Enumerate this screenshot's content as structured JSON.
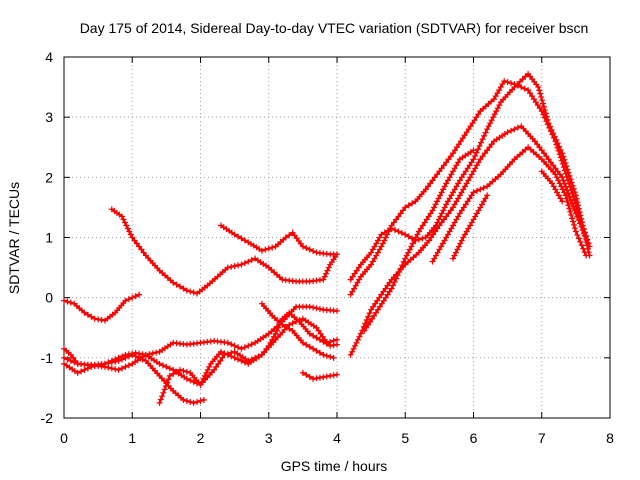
{
  "chart_data": {
    "type": "scatter",
    "title": "Day 175 of 2014, Sidereal Day-to-day VTEC variation (SDTVAR) for receiver bscn",
    "xlabel": "GPS time / hours",
    "ylabel": "SDTVAR / TECUs",
    "xlim": [
      0,
      8
    ],
    "ylim": [
      -2,
      4
    ],
    "xticks": [
      "0",
      "1",
      "2",
      "3",
      "4",
      "5",
      "6",
      "7",
      "8"
    ],
    "yticks": [
      "-2",
      "-1",
      "0",
      "1",
      "2",
      "3",
      "4"
    ],
    "grid": true,
    "legend": "none",
    "marker": "+",
    "color": "#ff0000",
    "series": [
      {
        "points": [
          [
            0.0,
            -0.05
          ],
          [
            0.15,
            -0.1
          ],
          [
            0.3,
            -0.25
          ],
          [
            0.45,
            -0.35
          ],
          [
            0.6,
            -0.38
          ],
          [
            0.75,
            -0.25
          ],
          [
            0.9,
            -0.05
          ],
          [
            1.0,
            0.0
          ],
          [
            1.1,
            0.05
          ]
        ]
      },
      {
        "points": [
          [
            0.0,
            -0.85
          ],
          [
            0.1,
            -0.95
          ],
          [
            0.2,
            -1.1
          ],
          [
            0.4,
            -1.12
          ],
          [
            0.6,
            -1.1
          ],
          [
            0.7,
            -1.05
          ],
          [
            0.8,
            -1.0
          ],
          [
            0.9,
            -0.95
          ],
          [
            1.05,
            -0.92
          ],
          [
            1.2,
            -0.95
          ],
          [
            1.4,
            -1.1
          ],
          [
            1.6,
            -1.2
          ],
          [
            1.8,
            -1.35
          ],
          [
            2.0,
            -1.45
          ],
          [
            2.2,
            -1.2
          ],
          [
            2.35,
            -0.95
          ],
          [
            2.5,
            -0.9
          ],
          [
            2.7,
            -1.05
          ],
          [
            2.9,
            -0.95
          ],
          [
            3.1,
            -0.7
          ],
          [
            3.3,
            -0.45
          ],
          [
            3.5,
            -0.35
          ],
          [
            3.7,
            -0.5
          ],
          [
            3.85,
            -0.75
          ],
          [
            4.0,
            -0.7
          ]
        ]
      },
      {
        "points": [
          [
            0.0,
            -1.1
          ],
          [
            0.2,
            -1.25
          ],
          [
            0.4,
            -1.15
          ],
          [
            0.6,
            -1.1
          ],
          [
            0.8,
            -1.05
          ],
          [
            1.0,
            -0.95
          ],
          [
            1.2,
            -1.05
          ],
          [
            1.4,
            -1.3
          ],
          [
            1.6,
            -1.55
          ],
          [
            1.75,
            -1.7
          ],
          [
            1.9,
            -1.75
          ],
          [
            2.05,
            -1.7
          ]
        ]
      },
      {
        "points": [
          [
            1.4,
            -1.75
          ],
          [
            1.55,
            -1.3
          ],
          [
            1.7,
            -1.2
          ],
          [
            1.85,
            -1.25
          ],
          [
            2.0,
            -1.45
          ],
          [
            2.15,
            -1.1
          ],
          [
            2.3,
            -0.9
          ],
          [
            2.5,
            -1.0
          ],
          [
            2.7,
            -1.1
          ],
          [
            2.9,
            -0.95
          ],
          [
            3.0,
            -0.8
          ],
          [
            3.1,
            -0.6
          ],
          [
            3.2,
            -0.35
          ],
          [
            3.3,
            -0.25
          ],
          [
            3.45,
            -0.4
          ],
          [
            3.6,
            -0.6
          ],
          [
            3.75,
            -0.7
          ],
          [
            3.9,
            -0.8
          ],
          [
            4.0,
            -0.78
          ]
        ]
      },
      {
        "points": [
          [
            0.0,
            -1.0
          ],
          [
            0.2,
            -1.1
          ],
          [
            0.4,
            -1.12
          ],
          [
            0.6,
            -1.15
          ],
          [
            0.8,
            -1.2
          ],
          [
            1.0,
            -1.1
          ],
          [
            1.2,
            -0.95
          ],
          [
            1.4,
            -0.9
          ],
          [
            1.6,
            -0.75
          ],
          [
            1.8,
            -0.78
          ],
          [
            2.0,
            -0.75
          ],
          [
            2.2,
            -0.72
          ],
          [
            2.4,
            -0.75
          ],
          [
            2.6,
            -0.85
          ],
          [
            2.8,
            -0.75
          ],
          [
            3.0,
            -0.6
          ],
          [
            3.2,
            -0.4
          ],
          [
            3.4,
            -0.15
          ],
          [
            3.6,
            -0.15
          ],
          [
            3.8,
            -0.2
          ],
          [
            4.0,
            -0.22
          ]
        ]
      },
      {
        "points": [
          [
            0.7,
            1.47
          ],
          [
            0.85,
            1.35
          ],
          [
            1.0,
            1.0
          ],
          [
            1.2,
            0.7
          ],
          [
            1.4,
            0.45
          ],
          [
            1.6,
            0.25
          ],
          [
            1.8,
            0.12
          ],
          [
            1.95,
            0.07
          ],
          [
            2.1,
            0.2
          ],
          [
            2.25,
            0.35
          ],
          [
            2.4,
            0.5
          ],
          [
            2.6,
            0.55
          ],
          [
            2.8,
            0.65
          ],
          [
            3.0,
            0.5
          ],
          [
            3.2,
            0.3
          ],
          [
            3.4,
            0.27
          ],
          [
            3.6,
            0.27
          ],
          [
            3.8,
            0.3
          ],
          [
            3.9,
            0.55
          ],
          [
            4.0,
            0.72
          ]
        ]
      },
      {
        "points": [
          [
            2.3,
            1.2
          ],
          [
            2.5,
            1.05
          ],
          [
            2.7,
            0.92
          ],
          [
            2.9,
            0.78
          ],
          [
            3.1,
            0.85
          ],
          [
            3.25,
            1.0
          ],
          [
            3.35,
            1.08
          ],
          [
            3.5,
            0.85
          ],
          [
            3.7,
            0.75
          ],
          [
            3.9,
            0.72
          ],
          [
            4.0,
            0.72
          ]
        ]
      },
      {
        "points": [
          [
            2.9,
            -0.1
          ],
          [
            3.05,
            -0.3
          ],
          [
            3.2,
            -0.45
          ],
          [
            3.35,
            -0.55
          ],
          [
            3.5,
            -0.75
          ],
          [
            3.65,
            -0.85
          ],
          [
            3.8,
            -0.95
          ],
          [
            3.95,
            -1.0
          ]
        ]
      },
      {
        "points": [
          [
            3.5,
            -1.25
          ],
          [
            3.65,
            -1.35
          ],
          [
            3.8,
            -1.32
          ],
          [
            4.0,
            -1.28
          ]
        ]
      },
      {
        "points": [
          [
            4.2,
            -0.95
          ],
          [
            4.35,
            -0.6
          ],
          [
            4.5,
            -0.2
          ],
          [
            4.65,
            0.05
          ],
          [
            4.8,
            0.3
          ],
          [
            5.0,
            0.55
          ],
          [
            5.2,
            0.75
          ],
          [
            5.35,
            0.95
          ],
          [
            5.5,
            1.2
          ],
          [
            5.7,
            1.5
          ],
          [
            5.9,
            1.9
          ],
          [
            6.1,
            2.3
          ],
          [
            6.3,
            2.6
          ],
          [
            6.5,
            2.75
          ],
          [
            6.7,
            2.85
          ],
          [
            6.9,
            2.6
          ],
          [
            7.1,
            2.3
          ],
          [
            7.3,
            2.0
          ],
          [
            7.5,
            1.4
          ],
          [
            7.68,
            0.9
          ]
        ]
      },
      {
        "points": [
          [
            4.2,
            0.3
          ],
          [
            4.35,
            0.55
          ],
          [
            4.5,
            0.75
          ],
          [
            4.65,
            1.05
          ],
          [
            4.8,
            1.15
          ],
          [
            5.0,
            1.05
          ],
          [
            5.15,
            0.95
          ],
          [
            5.3,
            1.0
          ],
          [
            5.45,
            1.2
          ],
          [
            5.6,
            1.55
          ],
          [
            5.8,
            1.95
          ],
          [
            6.0,
            2.3
          ],
          [
            6.2,
            2.8
          ],
          [
            6.4,
            3.25
          ],
          [
            6.6,
            3.5
          ],
          [
            6.8,
            3.72
          ],
          [
            6.95,
            3.5
          ],
          [
            7.1,
            2.9
          ],
          [
            7.3,
            2.4
          ],
          [
            7.5,
            1.7
          ],
          [
            7.7,
            0.7
          ]
        ]
      },
      {
        "points": [
          [
            4.2,
            0.05
          ],
          [
            4.35,
            0.35
          ],
          [
            4.5,
            0.55
          ],
          [
            4.65,
            0.85
          ],
          [
            4.8,
            1.2
          ],
          [
            5.0,
            1.5
          ],
          [
            5.15,
            1.6
          ],
          [
            5.3,
            1.8
          ],
          [
            5.5,
            2.1
          ],
          [
            5.7,
            2.4
          ],
          [
            5.9,
            2.75
          ],
          [
            6.1,
            3.1
          ],
          [
            6.3,
            3.3
          ],
          [
            6.45,
            3.6
          ],
          [
            6.6,
            3.55
          ],
          [
            6.8,
            3.45
          ],
          [
            7.0,
            3.1
          ],
          [
            7.2,
            2.6
          ],
          [
            7.4,
            1.9
          ],
          [
            7.6,
            1.2
          ],
          [
            7.7,
            0.85
          ]
        ]
      },
      {
        "points": [
          [
            4.4,
            -0.55
          ],
          [
            4.6,
            -0.2
          ],
          [
            4.8,
            0.15
          ],
          [
            5.0,
            0.65
          ],
          [
            5.2,
            1.1
          ],
          [
            5.4,
            1.45
          ],
          [
            5.6,
            1.9
          ],
          [
            5.8,
            2.3
          ],
          [
            6.0,
            2.45
          ]
        ]
      },
      {
        "points": [
          [
            5.4,
            0.6
          ],
          [
            5.6,
            1.0
          ],
          [
            5.8,
            1.4
          ],
          [
            6.0,
            1.75
          ],
          [
            6.2,
            1.85
          ],
          [
            6.4,
            2.05
          ],
          [
            6.6,
            2.3
          ],
          [
            6.8,
            2.5
          ],
          [
            7.0,
            2.3
          ],
          [
            7.2,
            2.05
          ],
          [
            7.35,
            1.7
          ],
          [
            7.5,
            1.1
          ],
          [
            7.65,
            0.7
          ]
        ]
      },
      {
        "points": [
          [
            5.7,
            0.65
          ],
          [
            5.85,
            1.0
          ],
          [
            6.0,
            1.3
          ],
          [
            6.2,
            1.7
          ]
        ]
      },
      {
        "points": [
          [
            7.0,
            2.1
          ],
          [
            7.15,
            1.9
          ],
          [
            7.3,
            1.6
          ]
        ]
      }
    ]
  }
}
